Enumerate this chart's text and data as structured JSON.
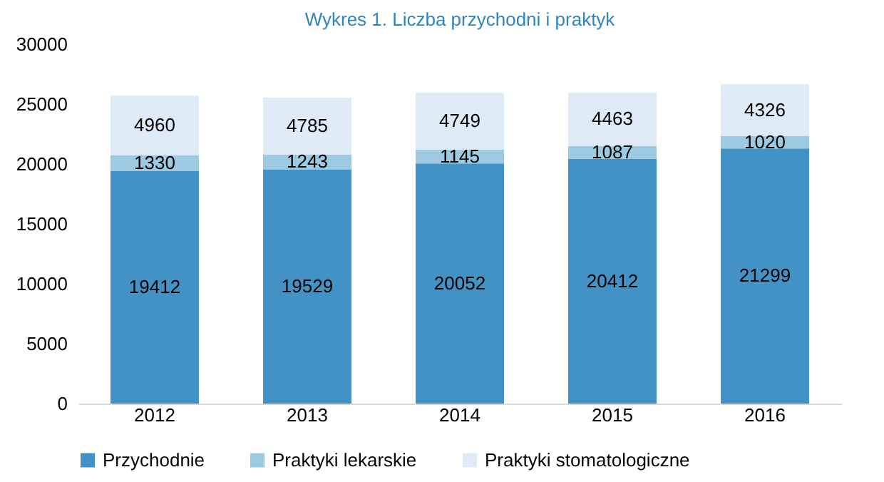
{
  "chart_data": {
    "type": "bar",
    "title": "Wykres 1. Liczba przychodni i praktyk",
    "categories": [
      "2012",
      "2013",
      "2014",
      "2015",
      "2016"
    ],
    "stacked": true,
    "data_labels": true,
    "legend": "bottom",
    "grid": false,
    "ylim": [
      0,
      30000
    ],
    "yticks": [
      0,
      5000,
      10000,
      15000,
      20000,
      25000,
      30000
    ],
    "series": [
      {
        "name": "Przychodnie",
        "color": "#4292c6",
        "values": [
          19412,
          19529,
          20052,
          20412,
          21299
        ]
      },
      {
        "name": "Praktyki lekarskie",
        "color": "#9ecae1",
        "values": [
          1330,
          1243,
          1145,
          1087,
          1020
        ]
      },
      {
        "name": "Praktyki stomatologiczne",
        "color": "#deebf7",
        "values": [
          4960,
          4785,
          4749,
          4463,
          4326
        ]
      }
    ]
  }
}
